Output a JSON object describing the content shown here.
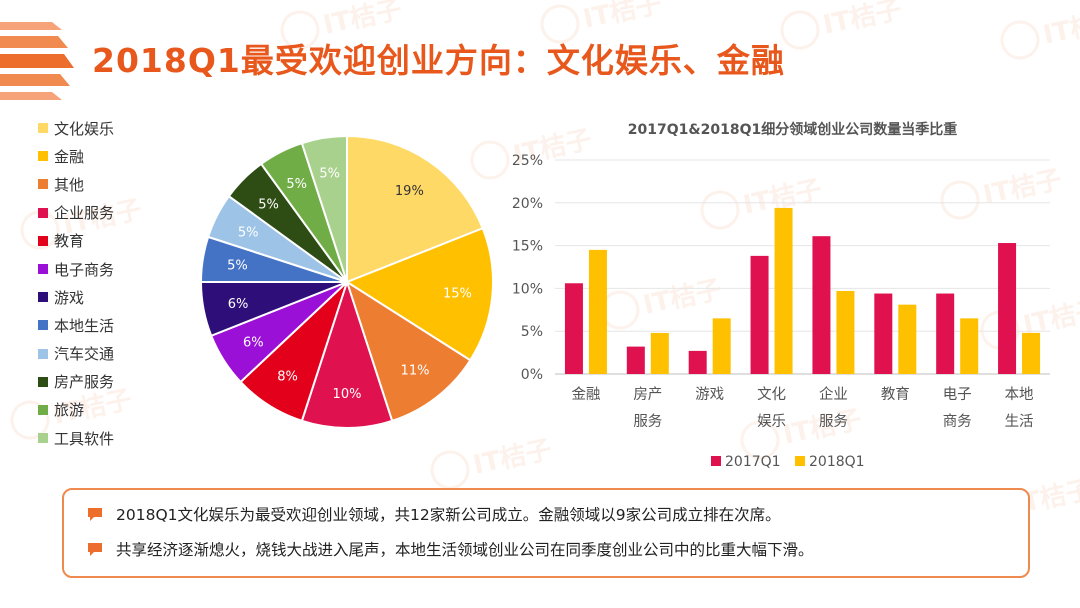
{
  "slide": {
    "title": "2018Q1最受欢迎创业方向：文化娱乐、金融",
    "watermark": "IT桔子"
  },
  "colors": {
    "accent": "#e8571b",
    "series_2017": "#e0114f",
    "series_2018": "#ffc000",
    "border": "#ef8a4e"
  },
  "chart_data": [
    {
      "type": "pie",
      "title": "",
      "labels": [
        "文化娱乐",
        "金融",
        "其他",
        "企业服务",
        "教育",
        "电子商务",
        "游戏",
        "本地生活",
        "汽车交通",
        "房产服务",
        "旅游",
        "工具软件"
      ],
      "values": [
        19,
        15,
        11,
        10,
        8,
        6,
        6,
        5,
        5,
        5,
        5,
        5
      ],
      "value_labels": [
        "19%",
        "15%",
        "11%",
        "10%",
        "8%",
        "6%",
        "6%",
        "5%",
        "5%",
        "5%",
        "5%",
        "5%"
      ],
      "colors": [
        "#ffd966",
        "#ffc000",
        "#ed7d31",
        "#e0114f",
        "#e3001b",
        "#9b10d6",
        "#2e0f7a",
        "#4472c4",
        "#9dc3e6",
        "#2e4d14",
        "#70ad47",
        "#a9d18e"
      ],
      "legend_position": "left"
    },
    {
      "type": "bar",
      "title": "2017Q1&2018Q1细分领域创业公司数量当季比重",
      "categories": [
        "金融",
        "房产\n服务",
        "游戏",
        "文化\n娱乐",
        "企业\n服务",
        "教育",
        "电子\n商务",
        "本地\n生活"
      ],
      "series": [
        {
          "name": "2017Q1",
          "values": [
            10.6,
            3.2,
            2.7,
            13.8,
            16.1,
            9.4,
            9.4,
            15.3
          ]
        },
        {
          "name": "2018Q1",
          "values": [
            14.5,
            4.8,
            6.5,
            19.4,
            9.7,
            8.1,
            6.5,
            4.8
          ]
        }
      ],
      "y_tick_labels": [
        "0%",
        "5%",
        "10%",
        "15%",
        "20%",
        "25%"
      ],
      "ylim": [
        0,
        25
      ],
      "grid": true,
      "legend_position": "bottom"
    }
  ],
  "notes": [
    "2018Q1文化娱乐为最受欢迎创业领域，共12家新公司成立。金融领域以9家公司成立排在次席。",
    "共享经济逐渐熄火，烧钱大战进入尾声，本地生活领域创业公司在同季度创业公司中的比重大幅下滑。"
  ]
}
